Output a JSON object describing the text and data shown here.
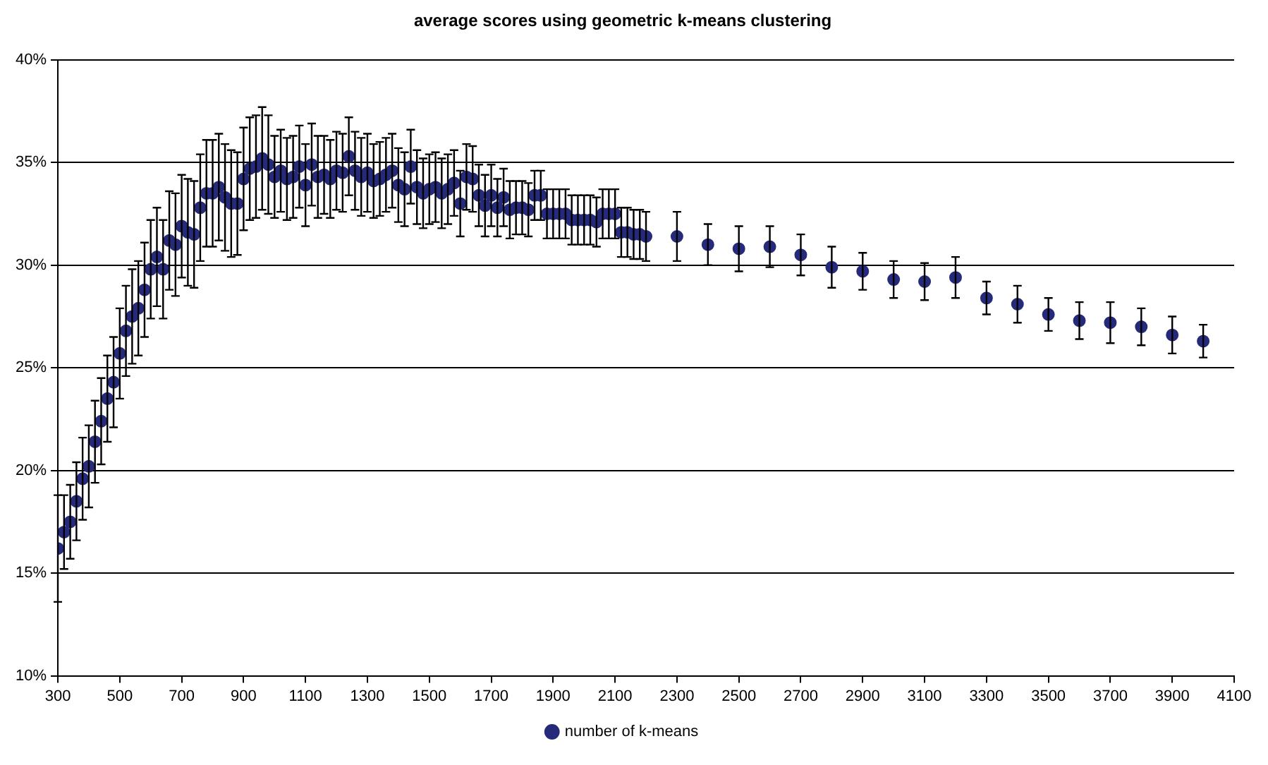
{
  "chart_data": {
    "type": "scatter",
    "title": "average scores using geometric k-means clustering",
    "x": [
      300,
      320,
      340,
      360,
      380,
      400,
      420,
      440,
      460,
      480,
      500,
      520,
      540,
      560,
      580,
      600,
      620,
      640,
      660,
      680,
      700,
      720,
      740,
      760,
      780,
      800,
      820,
      840,
      860,
      880,
      900,
      920,
      940,
      960,
      980,
      1000,
      1020,
      1040,
      1060,
      1080,
      1100,
      1120,
      1140,
      1160,
      1180,
      1200,
      1220,
      1240,
      1260,
      1280,
      1300,
      1320,
      1340,
      1360,
      1380,
      1400,
      1420,
      1440,
      1460,
      1480,
      1500,
      1520,
      1540,
      1560,
      1580,
      1600,
      1620,
      1640,
      1660,
      1680,
      1700,
      1720,
      1740,
      1760,
      1780,
      1800,
      1820,
      1840,
      1860,
      1880,
      1900,
      1920,
      1940,
      1960,
      1980,
      2000,
      2020,
      2040,
      2060,
      2080,
      2100,
      2120,
      2140,
      2160,
      2180,
      2200,
      2300,
      2400,
      2500,
      2600,
      2700,
      2800,
      2900,
      3000,
      3100,
      3200,
      3300,
      3400,
      3500,
      3600,
      3700,
      3800,
      3900,
      4000
    ],
    "series": [
      {
        "name": "number of k-means",
        "color": "#262a7a",
        "values": [
          16.2,
          17.0,
          17.5,
          18.5,
          19.6,
          20.2,
          21.4,
          22.4,
          23.5,
          24.3,
          25.7,
          26.8,
          27.5,
          27.9,
          28.8,
          29.8,
          30.4,
          29.8,
          31.2,
          31.0,
          31.9,
          31.6,
          31.5,
          32.8,
          33.5,
          33.5,
          33.8,
          33.3,
          33.0,
          33.0,
          34.2,
          34.7,
          34.8,
          35.2,
          34.9,
          34.3,
          34.6,
          34.2,
          34.3,
          34.8,
          33.9,
          34.9,
          34.3,
          34.4,
          34.2,
          34.6,
          34.5,
          35.3,
          34.6,
          34.3,
          34.5,
          34.1,
          34.2,
          34.4,
          34.6,
          33.9,
          33.7,
          34.8,
          33.8,
          33.5,
          33.7,
          33.8,
          33.5,
          33.7,
          34.0,
          33.0,
          34.3,
          34.2,
          33.4,
          32.9,
          33.4,
          32.8,
          33.3,
          32.7,
          32.8,
          32.8,
          32.7,
          33.4,
          33.4,
          32.5,
          32.5,
          32.5,
          32.5,
          32.2,
          32.2,
          32.2,
          32.2,
          32.1,
          32.5,
          32.5,
          32.5,
          31.6,
          31.6,
          31.5,
          31.5,
          31.4,
          31.4,
          31.0,
          30.8,
          30.9,
          30.5,
          29.9,
          29.7,
          29.3,
          29.2,
          29.4,
          28.4,
          28.1,
          27.6,
          27.3,
          27.2,
          27.0,
          26.6,
          26.3
        ],
        "errors": [
          2.6,
          1.8,
          1.8,
          1.9,
          2.0,
          2.0,
          2.0,
          2.1,
          2.1,
          2.2,
          2.2,
          2.2,
          2.3,
          2.3,
          2.3,
          2.4,
          2.4,
          2.4,
          2.4,
          2.5,
          2.5,
          2.6,
          2.6,
          2.6,
          2.6,
          2.6,
          2.6,
          2.6,
          2.6,
          2.5,
          2.5,
          2.5,
          2.5,
          2.5,
          2.4,
          2.0,
          2.0,
          2.0,
          2.0,
          2.0,
          2.0,
          2.0,
          2.0,
          1.9,
          1.9,
          1.9,
          1.9,
          1.9,
          1.9,
          1.9,
          1.9,
          1.8,
          1.8,
          1.8,
          1.8,
          1.8,
          1.8,
          1.8,
          1.8,
          1.7,
          1.7,
          1.7,
          1.7,
          1.7,
          1.6,
          1.6,
          1.6,
          1.6,
          1.5,
          1.5,
          1.5,
          1.4,
          1.4,
          1.4,
          1.3,
          1.3,
          1.3,
          1.2,
          1.2,
          1.2,
          1.2,
          1.2,
          1.2,
          1.2,
          1.2,
          1.2,
          1.2,
          1.2,
          1.2,
          1.2,
          1.2,
          1.2,
          1.2,
          1.2,
          1.2,
          1.2,
          1.2,
          1.0,
          1.1,
          1.0,
          1.0,
          1.0,
          0.9,
          0.9,
          0.9,
          1.0,
          0.8,
          0.9,
          0.8,
          0.9,
          1.0,
          0.9,
          0.9,
          0.8
        ]
      }
    ],
    "xlim": [
      300,
      4100
    ],
    "xticks": [
      300,
      500,
      700,
      900,
      1100,
      1300,
      1500,
      1700,
      1900,
      2100,
      2300,
      2500,
      2700,
      2900,
      3100,
      3300,
      3500,
      3700,
      3900,
      4100
    ],
    "ylim": [
      10,
      40
    ],
    "yticks": [
      {
        "value": 10,
        "label": "10%"
      },
      {
        "value": 15,
        "label": "15%"
      },
      {
        "value": 20,
        "label": "20%"
      },
      {
        "value": 25,
        "label": "25%"
      },
      {
        "value": 30,
        "label": "30%"
      },
      {
        "value": 35,
        "label": "35%"
      },
      {
        "value": 40,
        "label": "40%"
      }
    ],
    "grid": "y",
    "legend": "bottom",
    "marker": "circle"
  }
}
